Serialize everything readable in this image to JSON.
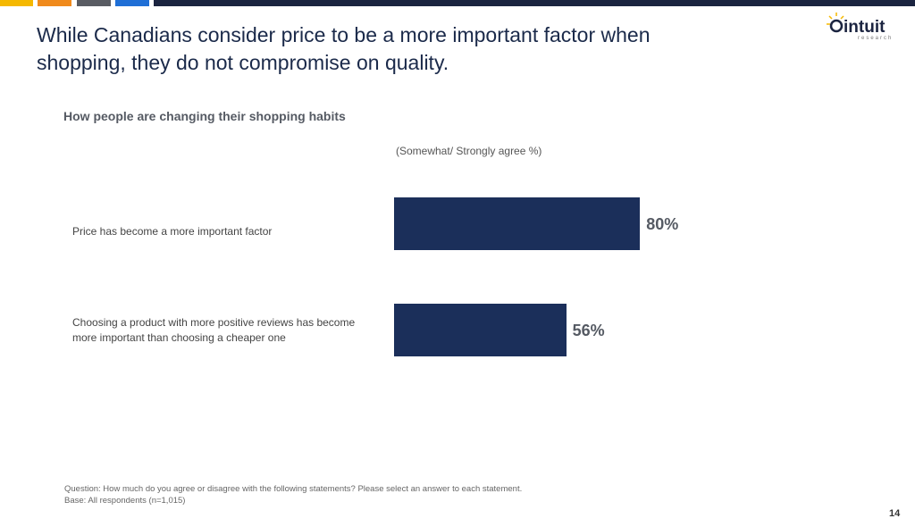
{
  "header": {
    "title": "While Canadians consider price to be a more important factor when shopping, they do not compromise on quality.",
    "logo_text": "intuit research",
    "stripe_colors": [
      "#f5b800",
      "#f08a1c",
      "#595c63",
      "#1f6fd6",
      "#1b2440"
    ]
  },
  "chart_data": {
    "type": "bar",
    "orientation": "horizontal",
    "title": "How people are changing their shopping habits",
    "unit_label": "(Somewhat/ Strongly agree %)",
    "categories": [
      "Price has become a more important factor",
      "Choosing a product with more positive reviews has become more important than choosing a cheaper one"
    ],
    "values": [
      80,
      56
    ],
    "data_labels": [
      "80%",
      "56%"
    ],
    "xlim": [
      0,
      100
    ],
    "grid": false,
    "bar_color": "#1b2f5a"
  },
  "footer": {
    "question": "Question: How much do you agree or disagree with the following statements? Please select an answer to each statement.",
    "base": "Base: All respondents (n=1,015)",
    "page_number": "14"
  }
}
